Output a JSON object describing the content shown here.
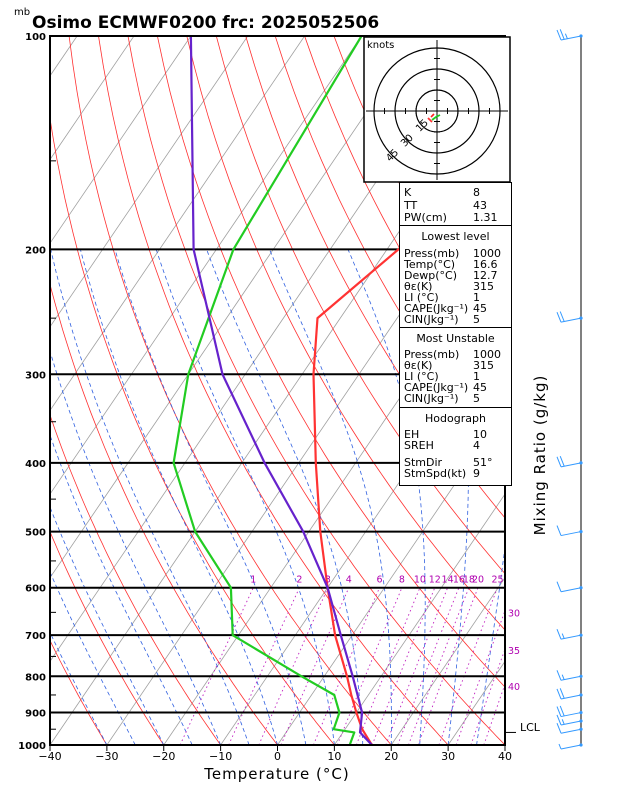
{
  "chart_data": {
    "type": "skew-t",
    "title": "Osimo ECMWF0200  frc: 2025052506",
    "pressure_unit": "mb",
    "xlabel": "Temperature (°C)",
    "right_axis_label": "Mixing Ratio  (g/kg)",
    "x_ticks": [
      "−40",
      "−30",
      "−20",
      "−10",
      "0",
      "10",
      "20",
      "30",
      "40"
    ],
    "x_values": [
      -40,
      -30,
      -20,
      -10,
      0,
      10,
      20,
      30,
      40
    ],
    "xlim": [
      -40,
      40
    ],
    "pressure_ticks": [
      100,
      200,
      300,
      400,
      500,
      600,
      700,
      800,
      900,
      1000
    ],
    "ylim_mb": [
      1000,
      100
    ],
    "mixing_ratio_labels": [
      "1",
      "2",
      "3",
      "4",
      "6",
      "8",
      "10",
      "12",
      "14",
      "16",
      "18",
      "20",
      "25",
      "30",
      "35",
      "40"
    ],
    "mixing_ratio_values": [
      1,
      2,
      3,
      4,
      6,
      8,
      10,
      12,
      14,
      16,
      18,
      20,
      25,
      30,
      35,
      40
    ],
    "lcl_label": "LCL",
    "lcl_pressure_mb": 960,
    "series": [
      {
        "color": "#ff3333",
        "points": [
          [
            1000,
            16.6
          ],
          [
            950,
            13
          ],
          [
            900,
            10
          ],
          [
            850,
            7
          ],
          [
            800,
            4
          ],
          [
            700,
            -3
          ],
          [
            600,
            -10
          ],
          [
            500,
            -18
          ],
          [
            400,
            -27
          ],
          [
            300,
            -38
          ],
          [
            250,
            -44
          ],
          [
            200,
            -38
          ],
          [
            100,
            -23
          ]
        ]
      },
      {
        "color": "#22cc22",
        "points": [
          [
            1000,
            12.7
          ],
          [
            960,
            12
          ],
          [
            950,
            8
          ],
          [
            900,
            7
          ],
          [
            850,
            4
          ],
          [
            800,
            -4
          ],
          [
            700,
            -21
          ],
          [
            600,
            -27
          ],
          [
            500,
            -40
          ],
          [
            400,
            -52
          ],
          [
            300,
            -60
          ],
          [
            200,
            -67
          ],
          [
            100,
            -70
          ]
        ]
      },
      {
        "color": "#6622cc",
        "points": [
          [
            1000,
            16.6
          ],
          [
            960,
            13
          ],
          [
            900,
            11
          ],
          [
            800,
            5
          ],
          [
            700,
            -2
          ],
          [
            600,
            -10
          ],
          [
            500,
            -21
          ],
          [
            400,
            -36
          ],
          [
            300,
            -54
          ],
          [
            200,
            -74
          ],
          [
            100,
            -100
          ]
        ]
      }
    ],
    "wind_barbs": [
      {
        "pressure": 100,
        "speed_kt": 25
      },
      {
        "pressure": 250,
        "speed_kt": 20
      },
      {
        "pressure": 400,
        "speed_kt": 20
      },
      {
        "pressure": 500,
        "speed_kt": 10
      },
      {
        "pressure": 600,
        "speed_kt": 10
      },
      {
        "pressure": 700,
        "speed_kt": 15
      },
      {
        "pressure": 800,
        "speed_kt": 15
      },
      {
        "pressure": 850,
        "speed_kt": 20
      },
      {
        "pressure": 900,
        "speed_kt": 20
      },
      {
        "pressure": 925,
        "speed_kt": 15
      },
      {
        "pressure": 950,
        "speed_kt": 10
      },
      {
        "pressure": 1000,
        "speed_kt": 5
      }
    ]
  },
  "hodograph": {
    "unit_label": "knots",
    "ring_labels": [
      "15",
      "30",
      "45"
    ]
  },
  "indices": {
    "k_label": "K",
    "k": "8",
    "tt_label": "TT",
    "tt": "43",
    "pw_label": "PW(cm)",
    "pw": "1.31"
  },
  "lowest_level": {
    "title": "Lowest level",
    "rows": [
      {
        "label": "Press(mb)",
        "value": "1000"
      },
      {
        "label": "Temp(°C)",
        "value": "16.6"
      },
      {
        "label": "Dewp(°C)",
        "value": "12.7"
      },
      {
        "label": "θε(K)",
        "value": "315"
      },
      {
        "label": "LI (°C)",
        "value": "1"
      },
      {
        "label": "CAPE(Jkg⁻¹)",
        "value": "45"
      },
      {
        "label": "CIN(Jkg⁻¹)",
        "value": "5"
      }
    ]
  },
  "most_unstable": {
    "title": "Most Unstable",
    "rows": [
      {
        "label": "Press(mb)",
        "value": "1000"
      },
      {
        "label": "θε(K)",
        "value": "315"
      },
      {
        "label": "LI (°C)",
        "value": "1"
      },
      {
        "label": "CAPE(Jkg⁻¹)",
        "value": "45"
      },
      {
        "label": "CIN(Jkg⁻¹)",
        "value": "5"
      }
    ]
  },
  "hodograph_params": {
    "title": "Hodograph",
    "rows": [
      {
        "label": "EH",
        "value": "10"
      },
      {
        "label": "SREH",
        "value": "4"
      },
      {
        "label": "StmDir",
        "value": "51°"
      },
      {
        "label": "StmSpd(kt)",
        "value": "9"
      }
    ]
  }
}
